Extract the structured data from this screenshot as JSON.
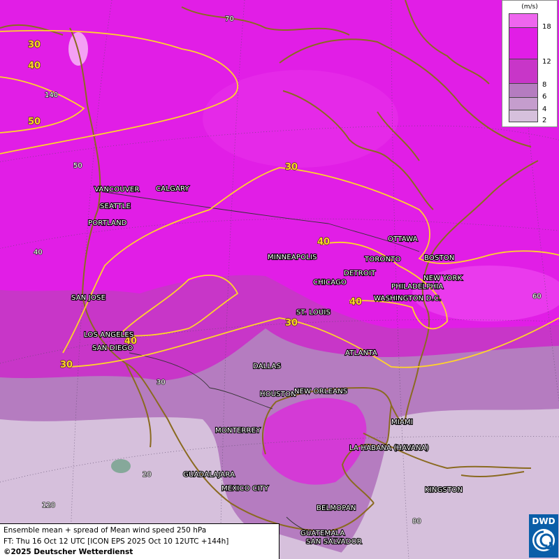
{
  "legend": {
    "unit": "(m/s)",
    "levels": [
      {
        "label": "18",
        "color": "#ee66ee"
      },
      {
        "label": "12",
        "color": "#e11ee6"
      },
      {
        "label": "8",
        "color": "#c836c8"
      },
      {
        "label": "6",
        "color": "#b57cc0"
      },
      {
        "label": "4",
        "color": "#c59dcd"
      },
      {
        "label": "2",
        "color": "#d6c0dc"
      }
    ]
  },
  "isolines": {
    "label_30": "30",
    "label_40": "40",
    "label_50": "50"
  },
  "grid_labels": {
    "lat_70": "70",
    "lon_140": "140",
    "lat_50": "50",
    "lat_40": "40",
    "lat_30": "30",
    "lat_20": "20",
    "lon_120": "120",
    "lon_80": "80",
    "lon_60": "60"
  },
  "cities": {
    "vancouver": "VANCOUVER",
    "calgary": "CALGARY",
    "seattle": "SEATTLE",
    "portland": "PORTLAND",
    "san_jose": "SAN JOSE",
    "los_angeles": "LOS ANGELES",
    "san_diego": "SAN DIEGO",
    "minneapolis": "MINNEAPOLIS",
    "chicago": "CHICAGO",
    "detroit": "DETROIT",
    "toronto": "TORONTO",
    "ottawa": "OTTAWA",
    "boston": "BOSTON",
    "new_york": "NEW YORK",
    "philadelphia": "PHILADELPHIA",
    "washington": "WASHINGTON D.C.",
    "st_louis": "ST. LOUIS",
    "atlanta": "ATLANTA",
    "dallas": "DALLAS",
    "houston": "HOUSTON",
    "new_orleans": "NEW ORLEANS",
    "miami": "MIAMI",
    "monterrey": "MONTERREY",
    "la_habana": "LA HABANA (HAVANA)",
    "guadalajara": "GUADALAJARA",
    "mexico_city": "MEXICO CITY",
    "kingston": "KINGSTON",
    "belmopan": "BELMOPAN",
    "guatemala": "GUATEMALA",
    "san_salvador": "SAN SALVADOR"
  },
  "info": {
    "line1": "Ensemble mean + spread of Mean wind speed 250 hPa",
    "line2": "FT: Thu 16 Oct 12 UTC [ICON EPS 2025 Oct 10 12UTC +144h]",
    "line3": "©2025 Deutscher Wetterdienst"
  },
  "logo": {
    "text": "DWD"
  }
}
